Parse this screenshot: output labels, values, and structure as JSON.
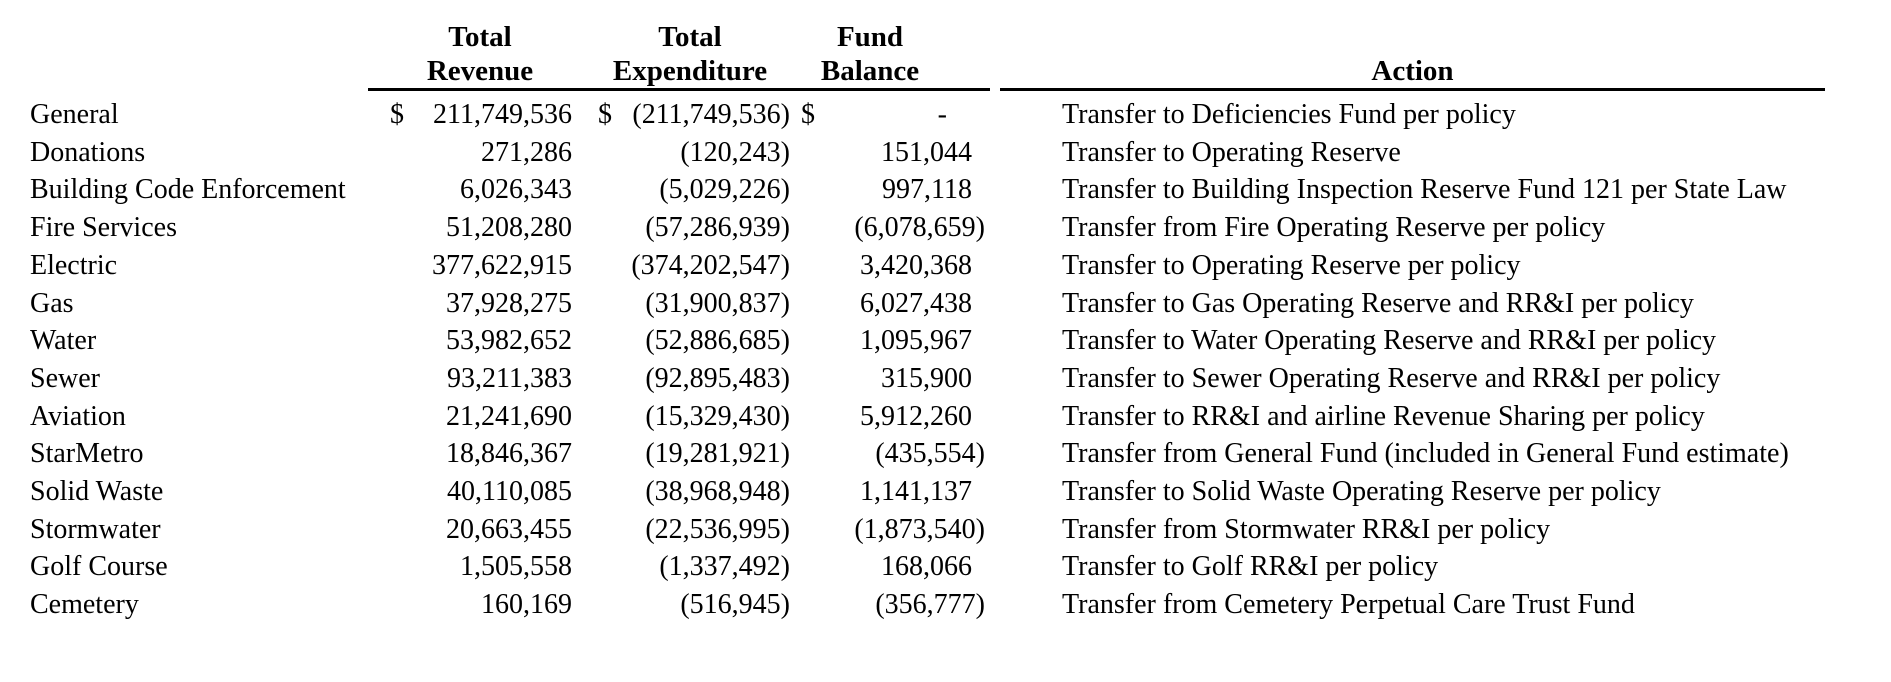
{
  "table": {
    "headers": {
      "revenue_line1": "Total",
      "revenue_line2": "Revenue",
      "expenditure_line1": "Total",
      "expenditure_line2": "Expenditure",
      "balance_line1": "Fund",
      "balance_line2": "Balance",
      "action": "Action"
    },
    "currency_symbol": "$",
    "text_color": "#000000",
    "background_color": "#ffffff",
    "rows": [
      {
        "fund": "General",
        "revenue": "211,749,536",
        "expenditure": "(211,749,536)",
        "balance": "-",
        "show_currency": true,
        "action": "Transfer to Deficiencies Fund per policy"
      },
      {
        "fund": "Donations",
        "revenue": "271,286",
        "expenditure": "(120,243)",
        "balance": "151,044",
        "show_currency": false,
        "action": "Transfer to Operating Reserve"
      },
      {
        "fund": "Building Code Enforcement",
        "revenue": "6,026,343",
        "expenditure": "(5,029,226)",
        "balance": "997,118",
        "show_currency": false,
        "action": "Transfer to Building Inspection Reserve Fund 121 per State Law"
      },
      {
        "fund": "Fire Services",
        "revenue": "51,208,280",
        "expenditure": "(57,286,939)",
        "balance": "(6,078,659)",
        "show_currency": false,
        "action": "Transfer from Fire Operating Reserve per policy"
      },
      {
        "fund": "Electric",
        "revenue": "377,622,915",
        "expenditure": "(374,202,547)",
        "balance": "3,420,368",
        "show_currency": false,
        "action": "Transfer to Operating Reserve per policy"
      },
      {
        "fund": "Gas",
        "revenue": "37,928,275",
        "expenditure": "(31,900,837)",
        "balance": "6,027,438",
        "show_currency": false,
        "action": "Transfer to Gas Operating Reserve and RR&I per policy"
      },
      {
        "fund": "Water",
        "revenue": "53,982,652",
        "expenditure": "(52,886,685)",
        "balance": "1,095,967",
        "show_currency": false,
        "action": "Transfer to Water Operating Reserve and RR&I per policy"
      },
      {
        "fund": "Sewer",
        "revenue": "93,211,383",
        "expenditure": "(92,895,483)",
        "balance": "315,900",
        "show_currency": false,
        "action": "Transfer to Sewer Operating Reserve and RR&I per policy"
      },
      {
        "fund": "Aviation",
        "revenue": "21,241,690",
        "expenditure": "(15,329,430)",
        "balance": "5,912,260",
        "show_currency": false,
        "action": "Transfer to RR&I and airline Revenue Sharing per policy"
      },
      {
        "fund": "StarMetro",
        "revenue": "18,846,367",
        "expenditure": "(19,281,921)",
        "balance": "(435,554)",
        "show_currency": false,
        "action": "Transfer from General Fund (included in General Fund estimate)"
      },
      {
        "fund": "Solid Waste",
        "revenue": "40,110,085",
        "expenditure": "(38,968,948)",
        "balance": "1,141,137",
        "show_currency": false,
        "action": "Transfer to Solid Waste Operating Reserve per policy"
      },
      {
        "fund": "Stormwater",
        "revenue": "20,663,455",
        "expenditure": "(22,536,995)",
        "balance": "(1,873,540)",
        "show_currency": false,
        "action": "Transfer from Stormwater RR&I per policy"
      },
      {
        "fund": "Golf Course",
        "revenue": "1,505,558",
        "expenditure": "(1,337,492)",
        "balance": "168,066",
        "show_currency": false,
        "action": "Transfer to Golf RR&I per policy"
      },
      {
        "fund": "Cemetery",
        "revenue": "160,169",
        "expenditure": "(516,945)",
        "balance": "(356,777)",
        "show_currency": false,
        "action": "Transfer from Cemetery Perpetual Care Trust Fund"
      }
    ]
  }
}
